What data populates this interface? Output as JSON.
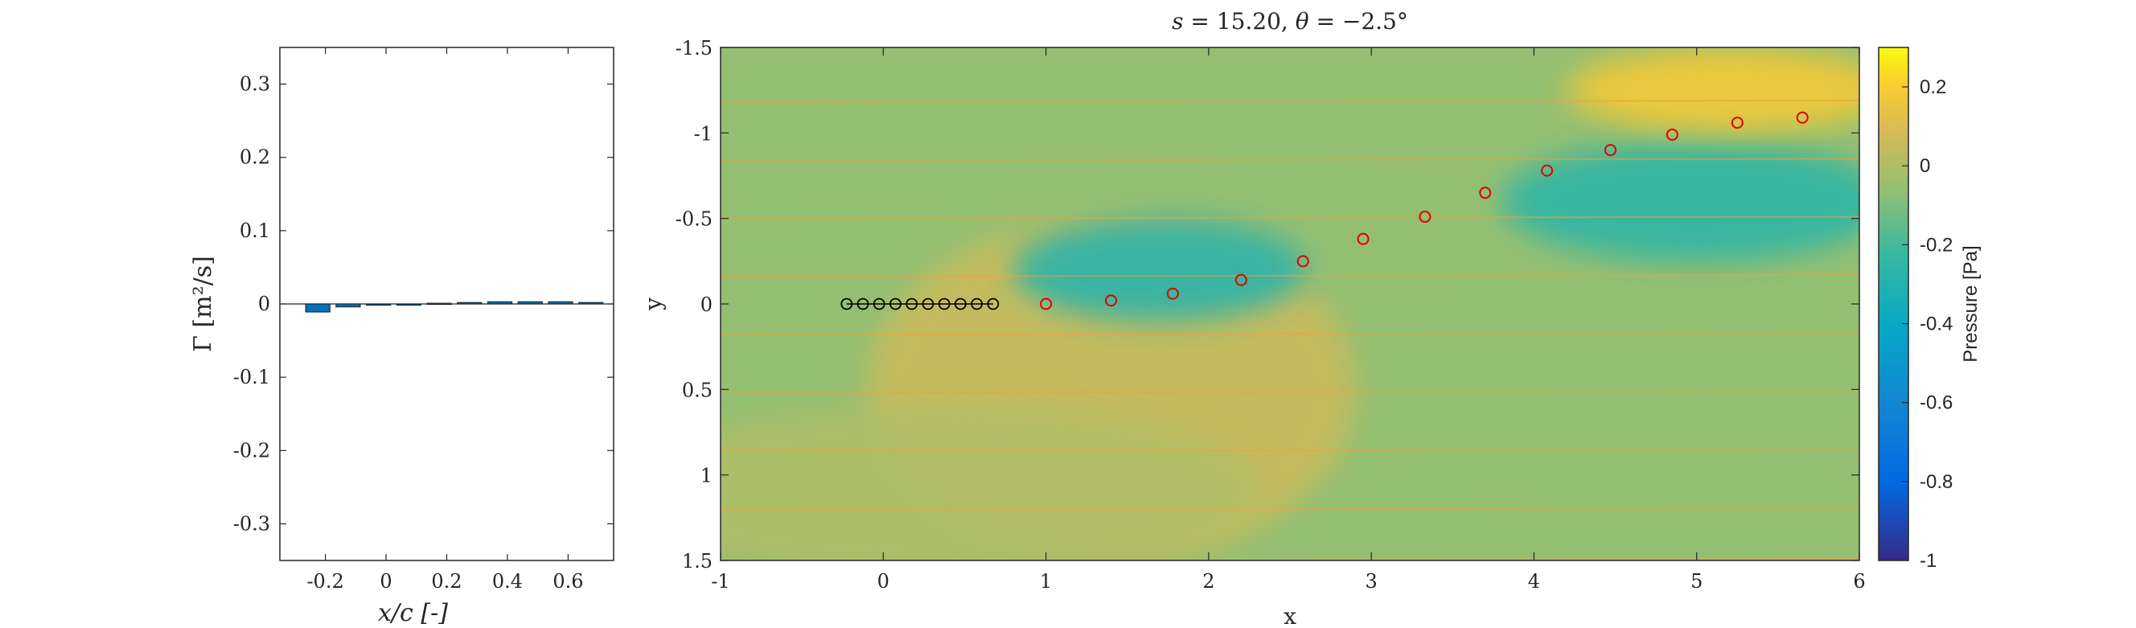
{
  "chart_data": [
    {
      "type": "bar",
      "title": "",
      "xlabel": "x/c [-]",
      "ylabel": "Γ [m²/s]",
      "xlim": [
        -0.35,
        0.75
      ],
      "ylim": [
        -0.35,
        0.35
      ],
      "xticks": [
        -0.2,
        0,
        0.2,
        0.4,
        0.6
      ],
      "xtick_labels": [
        "-0.2",
        "0",
        "0.2",
        "0.4",
        "0.6"
      ],
      "yticks": [
        0.3,
        0.2,
        0.1,
        0,
        -0.1,
        -0.2,
        -0.3
      ],
      "ytick_labels": [
        "0.3",
        "0.2",
        "0.1",
        "0",
        "-0.1",
        "-0.2",
        "-0.3"
      ],
      "bar_color": "#0072bd",
      "x": [
        -0.225,
        -0.125,
        -0.025,
        0.075,
        0.175,
        0.275,
        0.375,
        0.475,
        0.575,
        0.675
      ],
      "values": [
        -0.011,
        -0.004,
        -0.001,
        0.0,
        0.001,
        0.002,
        0.003,
        0.003,
        0.003,
        0.002
      ]
    },
    {
      "type": "heatmap",
      "title": "s = 15.20, θ = −2.5°",
      "title_parts": {
        "s_label": "s",
        "s_value": "= 15.20,",
        "theta_label": "θ",
        "theta_value": "= −2.5°"
      },
      "xlabel": "x",
      "ylabel": "y",
      "xlim": [
        -1,
        6
      ],
      "ylim": [
        1.5,
        -1.5
      ],
      "y_reversed": true,
      "xticks": [
        -1,
        0,
        1,
        2,
        3,
        4,
        5,
        6
      ],
      "xtick_labels": [
        "-1",
        "0",
        "1",
        "2",
        "3",
        "4",
        "5",
        "6"
      ],
      "yticks": [
        -1.5,
        -1,
        -0.5,
        0,
        0.5,
        1,
        1.5
      ],
      "ytick_labels": [
        "-1.5",
        "-1",
        "-0.5",
        "0",
        "0.5",
        "1",
        "1.5"
      ],
      "colorbar": {
        "label": "Pressure [Pa]",
        "range": [
          -1,
          0.3
        ],
        "ticks": [
          0.2,
          0,
          -0.2,
          -0.4,
          -0.6,
          -0.8,
          -1
        ],
        "tick_labels": [
          "0.2",
          "0",
          "-0.2",
          "-0.4",
          "-0.6",
          "-0.8",
          "-1"
        ],
        "colormap": "parula"
      },
      "field": {
        "background_pressure": -0.06,
        "features": [
          {
            "kind": "high",
            "x": 1.4,
            "y": 0.5,
            "rx": 1.5,
            "ry": 1.0,
            "value": 0.06
          },
          {
            "kind": "high",
            "x": 0.3,
            "y": 1.1,
            "rx": 2.0,
            "ry": 0.5,
            "value": 0.0
          },
          {
            "kind": "low",
            "x": 1.7,
            "y": -0.2,
            "rx": 0.9,
            "ry": 0.3,
            "value": -0.28
          },
          {
            "kind": "low",
            "x": 5.0,
            "y": -0.6,
            "rx": 1.2,
            "ry": 0.35,
            "value": -0.26
          },
          {
            "kind": "high",
            "x": 5.2,
            "y": -1.25,
            "rx": 1.0,
            "ry": 0.25,
            "value": 0.18
          }
        ]
      },
      "bound_vortices": {
        "color": "#000000",
        "points": [
          {
            "x": -0.225,
            "y": 0
          },
          {
            "x": -0.125,
            "y": 0
          },
          {
            "x": -0.025,
            "y": 0
          },
          {
            "x": 0.075,
            "y": 0
          },
          {
            "x": 0.175,
            "y": 0
          },
          {
            "x": 0.275,
            "y": 0
          },
          {
            "x": 0.375,
            "y": 0
          },
          {
            "x": 0.475,
            "y": 0
          },
          {
            "x": 0.575,
            "y": 0
          },
          {
            "x": 0.675,
            "y": 0
          }
        ]
      },
      "wake_vortices": {
        "color": "#e00000",
        "points": [
          {
            "x": 1.0,
            "y": 0.0
          },
          {
            "x": 1.4,
            "y": -0.02
          },
          {
            "x": 1.78,
            "y": -0.06
          },
          {
            "x": 2.2,
            "y": -0.14
          },
          {
            "x": 2.58,
            "y": -0.25
          },
          {
            "x": 2.95,
            "y": -0.38
          },
          {
            "x": 3.33,
            "y": -0.51
          },
          {
            "x": 3.7,
            "y": -0.65
          },
          {
            "x": 4.08,
            "y": -0.78
          },
          {
            "x": 4.47,
            "y": -0.9
          },
          {
            "x": 4.85,
            "y": -0.99
          },
          {
            "x": 5.25,
            "y": -1.06
          },
          {
            "x": 5.65,
            "y": -1.09
          }
        ]
      },
      "streamlines": {
        "color": "#f0a040",
        "y_rows": [
          -1.5,
          -1.18,
          -0.84,
          -0.5,
          -0.16,
          0.18,
          0.52,
          0.86,
          1.2,
          1.5
        ]
      }
    }
  ]
}
